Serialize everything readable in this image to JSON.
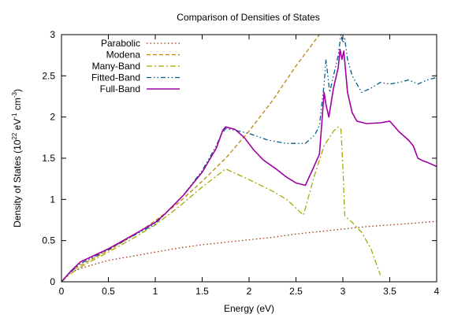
{
  "chart_data": {
    "type": "line",
    "title": "Comparison of Densities of States",
    "xlabel": "Energy (eV)",
    "ylabel_parts": [
      "Density of States (10",
      "22",
      " eV",
      "-1",
      " cm",
      "-3",
      ")"
    ],
    "xlim": [
      0,
      4
    ],
    "ylim": [
      0,
      3
    ],
    "xticks": [
      0,
      0.5,
      1,
      1.5,
      2,
      2.5,
      3,
      3.5,
      4
    ],
    "xtick_labels": [
      "0",
      "0.5",
      "1",
      "1.5",
      "2",
      "2.5",
      "3",
      "3.5",
      "4"
    ],
    "yticks": [
      0,
      0.5,
      1,
      1.5,
      2,
      2.5,
      3
    ],
    "ytick_labels": [
      "0",
      "0.5",
      "1",
      "1.5",
      "2",
      "2.5",
      "3"
    ],
    "grid": false,
    "legend_position": "top-left",
    "series": [
      {
        "name": "Parabolic",
        "color": "#a0320a",
        "dash": "dotted",
        "points": [
          [
            0,
            0
          ],
          [
            0.1,
            0.12
          ],
          [
            0.25,
            0.18
          ],
          [
            0.5,
            0.26
          ],
          [
            0.75,
            0.31
          ],
          [
            1,
            0.36
          ],
          [
            1.25,
            0.41
          ],
          [
            1.5,
            0.45
          ],
          [
            1.75,
            0.48
          ],
          [
            2,
            0.51
          ],
          [
            2.25,
            0.54
          ],
          [
            2.5,
            0.58
          ],
          [
            2.75,
            0.61
          ],
          [
            3,
            0.64
          ],
          [
            3.25,
            0.67
          ],
          [
            3.5,
            0.69
          ],
          [
            3.75,
            0.71
          ],
          [
            4,
            0.735
          ]
        ]
      },
      {
        "name": "Modena",
        "color": "#b8860b",
        "dash": "dashed",
        "points": [
          [
            0,
            0
          ],
          [
            0.1,
            0.13
          ],
          [
            0.25,
            0.23
          ],
          [
            0.5,
            0.38
          ],
          [
            0.75,
            0.55
          ],
          [
            1,
            0.74
          ],
          [
            1.25,
            0.96
          ],
          [
            1.5,
            1.22
          ],
          [
            1.75,
            1.5
          ],
          [
            2,
            1.83
          ],
          [
            2.25,
            2.2
          ],
          [
            2.5,
            2.62
          ],
          [
            2.75,
            3.0
          ]
        ]
      },
      {
        "name": "Many-Band",
        "color": "#a8a800",
        "dash": "dashdot",
        "points": [
          [
            0,
            0
          ],
          [
            0.1,
            0.1
          ],
          [
            0.25,
            0.21
          ],
          [
            0.5,
            0.36
          ],
          [
            0.75,
            0.52
          ],
          [
            1,
            0.69
          ],
          [
            1.25,
            0.91
          ],
          [
            1.5,
            1.15
          ],
          [
            1.75,
            1.37
          ],
          [
            2,
            1.24
          ],
          [
            2.25,
            1.1
          ],
          [
            2.4,
            1.0
          ],
          [
            2.58,
            0.81
          ],
          [
            2.7,
            1.3
          ],
          [
            2.8,
            1.65
          ],
          [
            2.9,
            1.83
          ],
          [
            2.95,
            1.88
          ],
          [
            2.98,
            1.85
          ],
          [
            3.0,
            1.4
          ],
          [
            3.02,
            0.8
          ],
          [
            3.1,
            0.72
          ],
          [
            3.2,
            0.6
          ],
          [
            3.3,
            0.4
          ],
          [
            3.4,
            0.08
          ]
        ]
      },
      {
        "name": "Fitted-Band",
        "color": "#005a8c",
        "dash": "dashdot2",
        "points": [
          [
            0,
            0
          ],
          [
            0.1,
            0.12
          ],
          [
            0.2,
            0.22
          ],
          [
            0.5,
            0.39
          ],
          [
            0.75,
            0.55
          ],
          [
            1.0,
            0.7
          ],
          [
            1.1,
            0.82
          ],
          [
            1.3,
            1.05
          ],
          [
            1.5,
            1.35
          ],
          [
            1.65,
            1.65
          ],
          [
            1.7,
            1.78
          ],
          [
            1.75,
            1.86
          ],
          [
            1.85,
            1.84
          ],
          [
            2.0,
            1.8
          ],
          [
            2.2,
            1.72
          ],
          [
            2.4,
            1.68
          ],
          [
            2.6,
            1.68
          ],
          [
            2.7,
            1.78
          ],
          [
            2.75,
            1.9
          ],
          [
            2.8,
            2.4
          ],
          [
            2.82,
            2.7
          ],
          [
            2.86,
            2.3
          ],
          [
            2.9,
            2.5
          ],
          [
            2.95,
            2.75
          ],
          [
            2.98,
            3.0
          ],
          [
            3.0,
            2.9
          ],
          [
            3.02,
            2.95
          ],
          [
            3.05,
            2.7
          ],
          [
            3.1,
            2.5
          ],
          [
            3.15,
            2.4
          ],
          [
            3.2,
            2.3
          ],
          [
            3.3,
            2.35
          ],
          [
            3.4,
            2.42
          ],
          [
            3.5,
            2.4
          ],
          [
            3.6,
            2.42
          ],
          [
            3.7,
            2.45
          ],
          [
            3.8,
            2.4
          ],
          [
            3.9,
            2.45
          ],
          [
            4.0,
            2.48
          ]
        ]
      },
      {
        "name": "Full-Band",
        "color": "#a000a0",
        "dash": "solid",
        "points": [
          [
            0,
            0
          ],
          [
            0.1,
            0.13
          ],
          [
            0.2,
            0.24
          ],
          [
            0.5,
            0.4
          ],
          [
            0.75,
            0.56
          ],
          [
            1.0,
            0.72
          ],
          [
            1.1,
            0.82
          ],
          [
            1.3,
            1.05
          ],
          [
            1.5,
            1.33
          ],
          [
            1.65,
            1.62
          ],
          [
            1.72,
            1.84
          ],
          [
            1.75,
            1.88
          ],
          [
            1.85,
            1.85
          ],
          [
            1.95,
            1.75
          ],
          [
            2.05,
            1.6
          ],
          [
            2.15,
            1.48
          ],
          [
            2.3,
            1.36
          ],
          [
            2.4,
            1.27
          ],
          [
            2.5,
            1.2
          ],
          [
            2.6,
            1.17
          ],
          [
            2.7,
            1.42
          ],
          [
            2.75,
            1.55
          ],
          [
            2.8,
            2.3
          ],
          [
            2.82,
            2.15
          ],
          [
            2.85,
            2.0
          ],
          [
            2.9,
            2.35
          ],
          [
            2.95,
            2.6
          ],
          [
            2.97,
            2.82
          ],
          [
            2.99,
            2.7
          ],
          [
            3.01,
            2.8
          ],
          [
            3.05,
            2.3
          ],
          [
            3.1,
            2.05
          ],
          [
            3.15,
            1.95
          ],
          [
            3.25,
            1.92
          ],
          [
            3.4,
            1.93
          ],
          [
            3.5,
            1.95
          ],
          [
            3.6,
            1.82
          ],
          [
            3.7,
            1.72
          ],
          [
            3.75,
            1.65
          ],
          [
            3.8,
            1.5
          ],
          [
            3.85,
            1.47
          ],
          [
            3.9,
            1.45
          ],
          [
            4.0,
            1.4
          ]
        ]
      }
    ]
  }
}
